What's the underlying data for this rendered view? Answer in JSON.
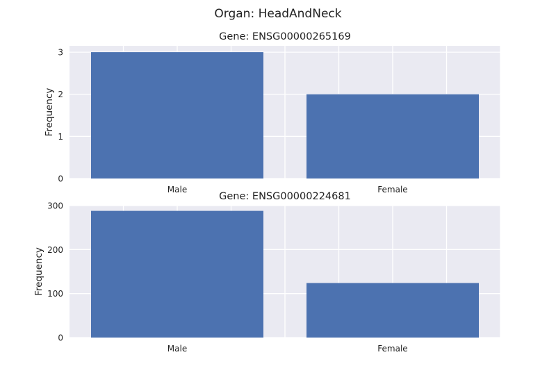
{
  "figure": {
    "title": "Organ: HeadAndNeck"
  },
  "style": {
    "bar_color": "#4c72b0",
    "axes_background": "#eaeaf2",
    "grid_color": "#ffffff"
  },
  "chart_data": [
    {
      "type": "bar",
      "title": "Gene: ENSG00000265169",
      "xlabel": "",
      "ylabel": "Frequency",
      "categories": [
        "Male",
        "Female"
      ],
      "values": [
        3,
        2
      ],
      "ylim": [
        0,
        3.15
      ],
      "yticks": [
        0,
        1,
        2,
        3
      ],
      "grid": true
    },
    {
      "type": "bar",
      "title": "Gene: ENSG00000224681",
      "xlabel": "",
      "ylabel": "Frequency",
      "categories": [
        "Male",
        "Female"
      ],
      "values": [
        288,
        124
      ],
      "ylim": [
        0,
        300
      ],
      "yticks": [
        0,
        100,
        200,
        300
      ],
      "grid": true
    }
  ]
}
